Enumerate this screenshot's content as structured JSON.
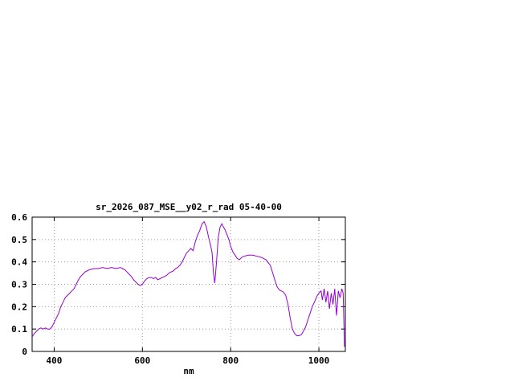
{
  "chart_data": {
    "type": "line",
    "title": "sr_2026_087_MSE__y02_r_rad 05-40-00",
    "xlabel": "nm",
    "ylabel": "",
    "xlim": [
      350,
      1060
    ],
    "ylim": [
      0,
      0.6
    ],
    "xticks": [
      400,
      600,
      800,
      1000
    ],
    "yticks": [
      0,
      0.1,
      0.2,
      0.3,
      0.4,
      0.5,
      0.6
    ],
    "grid": true,
    "legend": false,
    "line_color": "#9400d3",
    "grid_color": "#9a9a9a",
    "series": [
      {
        "name": "sr_2026_087_MSE__y02_r_rad",
        "points": [
          [
            350,
            0.065
          ],
          [
            355,
            0.08
          ],
          [
            360,
            0.09
          ],
          [
            365,
            0.1
          ],
          [
            370,
            0.105
          ],
          [
            375,
            0.1
          ],
          [
            380,
            0.105
          ],
          [
            385,
            0.1
          ],
          [
            390,
            0.1
          ],
          [
            395,
            0.11
          ],
          [
            400,
            0.13
          ],
          [
            405,
            0.15
          ],
          [
            410,
            0.17
          ],
          [
            415,
            0.2
          ],
          [
            420,
            0.22
          ],
          [
            425,
            0.24
          ],
          [
            430,
            0.25
          ],
          [
            435,
            0.26
          ],
          [
            440,
            0.27
          ],
          [
            445,
            0.28
          ],
          [
            450,
            0.3
          ],
          [
            455,
            0.32
          ],
          [
            460,
            0.335
          ],
          [
            465,
            0.345
          ],
          [
            470,
            0.355
          ],
          [
            480,
            0.365
          ],
          [
            490,
            0.37
          ],
          [
            500,
            0.37
          ],
          [
            510,
            0.375
          ],
          [
            520,
            0.37
          ],
          [
            530,
            0.375
          ],
          [
            540,
            0.37
          ],
          [
            550,
            0.375
          ],
          [
            555,
            0.37
          ],
          [
            560,
            0.365
          ],
          [
            565,
            0.355
          ],
          [
            570,
            0.345
          ],
          [
            575,
            0.335
          ],
          [
            580,
            0.32
          ],
          [
            585,
            0.31
          ],
          [
            590,
            0.3
          ],
          [
            595,
            0.295
          ],
          [
            600,
            0.3
          ],
          [
            605,
            0.315
          ],
          [
            610,
            0.325
          ],
          [
            615,
            0.33
          ],
          [
            620,
            0.33
          ],
          [
            625,
            0.325
          ],
          [
            630,
            0.33
          ],
          [
            635,
            0.32
          ],
          [
            640,
            0.325
          ],
          [
            645,
            0.33
          ],
          [
            650,
            0.335
          ],
          [
            655,
            0.34
          ],
          [
            660,
            0.35
          ],
          [
            665,
            0.355
          ],
          [
            670,
            0.36
          ],
          [
            675,
            0.37
          ],
          [
            680,
            0.375
          ],
          [
            685,
            0.385
          ],
          [
            690,
            0.4
          ],
          [
            695,
            0.42
          ],
          [
            700,
            0.44
          ],
          [
            705,
            0.45
          ],
          [
            710,
            0.46
          ],
          [
            715,
            0.45
          ],
          [
            720,
            0.49
          ],
          [
            725,
            0.52
          ],
          [
            730,
            0.54
          ],
          [
            735,
            0.57
          ],
          [
            740,
            0.58
          ],
          [
            745,
            0.555
          ],
          [
            750,
            0.51
          ],
          [
            755,
            0.47
          ],
          [
            758,
            0.44
          ],
          [
            761,
            0.35
          ],
          [
            764,
            0.305
          ],
          [
            768,
            0.4
          ],
          [
            772,
            0.51
          ],
          [
            776,
            0.555
          ],
          [
            780,
            0.57
          ],
          [
            784,
            0.555
          ],
          [
            788,
            0.54
          ],
          [
            792,
            0.52
          ],
          [
            796,
            0.5
          ],
          [
            800,
            0.47
          ],
          [
            805,
            0.445
          ],
          [
            810,
            0.43
          ],
          [
            815,
            0.415
          ],
          [
            820,
            0.41
          ],
          [
            825,
            0.42
          ],
          [
            830,
            0.425
          ],
          [
            840,
            0.43
          ],
          [
            850,
            0.43
          ],
          [
            860,
            0.425
          ],
          [
            870,
            0.42
          ],
          [
            880,
            0.41
          ],
          [
            890,
            0.385
          ],
          [
            900,
            0.32
          ],
          [
            905,
            0.29
          ],
          [
            910,
            0.275
          ],
          [
            915,
            0.27
          ],
          [
            920,
            0.265
          ],
          [
            925,
            0.25
          ],
          [
            930,
            0.21
          ],
          [
            935,
            0.15
          ],
          [
            940,
            0.1
          ],
          [
            945,
            0.08
          ],
          [
            950,
            0.07
          ],
          [
            955,
            0.07
          ],
          [
            960,
            0.075
          ],
          [
            965,
            0.09
          ],
          [
            970,
            0.11
          ],
          [
            975,
            0.14
          ],
          [
            980,
            0.17
          ],
          [
            985,
            0.2
          ],
          [
            990,
            0.22
          ],
          [
            995,
            0.245
          ],
          [
            1000,
            0.26
          ],
          [
            1005,
            0.27
          ],
          [
            1008,
            0.23
          ],
          [
            1012,
            0.28
          ],
          [
            1016,
            0.22
          ],
          [
            1020,
            0.27
          ],
          [
            1024,
            0.19
          ],
          [
            1028,
            0.26
          ],
          [
            1032,
            0.21
          ],
          [
            1036,
            0.28
          ],
          [
            1040,
            0.16
          ],
          [
            1044,
            0.27
          ],
          [
            1048,
            0.24
          ],
          [
            1052,
            0.28
          ],
          [
            1055,
            0.26
          ],
          [
            1058,
            0.02
          ]
        ]
      }
    ]
  }
}
